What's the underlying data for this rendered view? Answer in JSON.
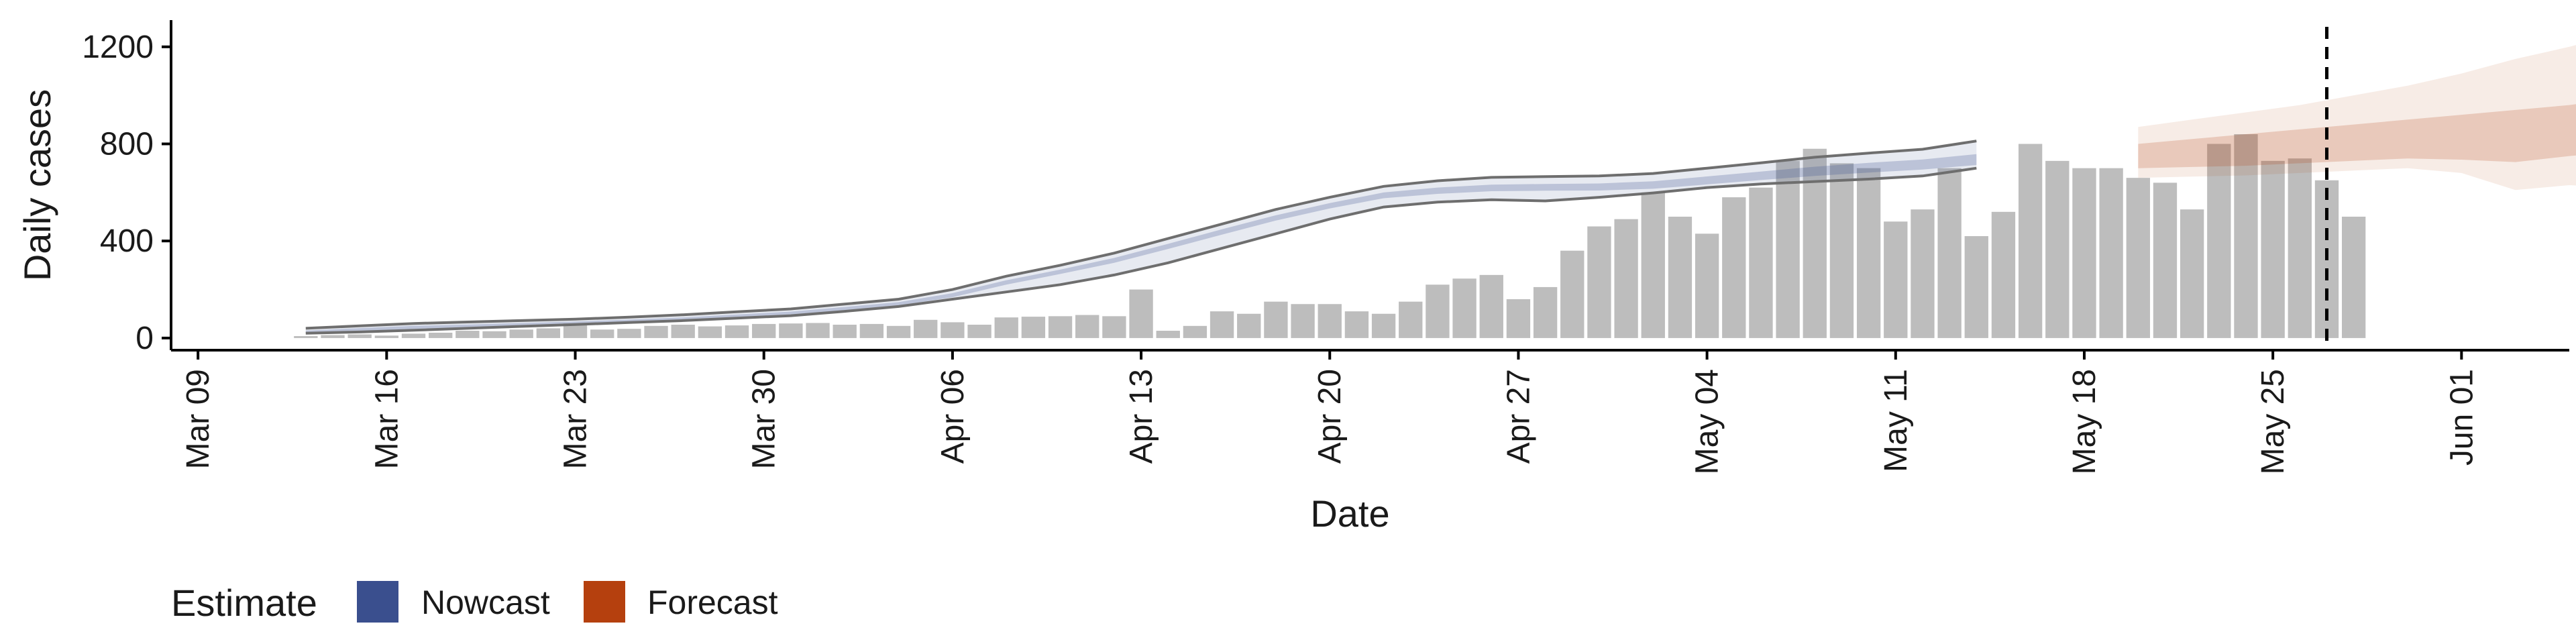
{
  "colors": {
    "bar": "#bdbdbd",
    "nowcast": "#3a4f8e",
    "forecast": "#b5400e",
    "line": "#6e6e6e",
    "axis": "#000000"
  },
  "legend": {
    "title": "Estimate",
    "items": [
      "Nowcast",
      "Forecast"
    ]
  },
  "chart_data": {
    "type": "bar",
    "xlabel": "Date",
    "ylabel": "Daily cases",
    "xlim": [
      "2020-03-08",
      "2020-06-05"
    ],
    "ylim": [
      -50,
      1310
    ],
    "yticks": [
      0,
      400,
      800,
      1200
    ],
    "xticks": [
      "2020-03-09",
      "2020-03-16",
      "2020-03-23",
      "2020-03-30",
      "2020-04-06",
      "2020-04-13",
      "2020-04-20",
      "2020-04-27",
      "2020-05-04",
      "2020-05-11",
      "2020-05-18",
      "2020-05-25",
      "2020-06-01"
    ],
    "xtick_labels": [
      "Mar 09",
      "Mar 16",
      "Mar 23",
      "Mar 30",
      "Apr 06",
      "Apr 13",
      "Apr 20",
      "Apr 27",
      "May 04",
      "May 11",
      "May 18",
      "May 25",
      "Jun 01"
    ],
    "grid": false,
    "legend_position": "bottom-left",
    "observed": {
      "name": "Daily cases",
      "start": "2020-03-13",
      "values": [
        8,
        12,
        15,
        10,
        18,
        22,
        30,
        28,
        35,
        40,
        60,
        35,
        38,
        50,
        55,
        48,
        52,
        58,
        60,
        62,
        55,
        58,
        50,
        75,
        65,
        55,
        85,
        88,
        90,
        95,
        90,
        200,
        30,
        50,
        110,
        100,
        150,
        140,
        140,
        110,
        100,
        150,
        220,
        245,
        260,
        160,
        210,
        360,
        460,
        490,
        600,
        500,
        430,
        580,
        620,
        730,
        780,
        720,
        700,
        480,
        530,
        700,
        420,
        520,
        800,
        730,
        700,
        700,
        660,
        640,
        530,
        800,
        840,
        730,
        740,
        650,
        500
      ]
    },
    "nowcast": {
      "name": "Nowcast",
      "start": "2020-03-13",
      "dates_step": 2,
      "upper": [
        40,
        50,
        60,
        66,
        72,
        78,
        86,
        96,
        108,
        120,
        140,
        160,
        200,
        255,
        300,
        350,
        410,
        470,
        530,
        580,
        625,
        648,
        662,
        665,
        668,
        678,
        700,
        722,
        745,
        762,
        778,
        812
      ],
      "inner_upper": [
        31,
        41,
        50,
        56,
        62,
        68,
        76,
        85,
        97,
        109,
        128,
        148,
        185,
        238,
        282,
        330,
        388,
        448,
        506,
        556,
        600,
        620,
        632,
        635,
        637,
        646,
        666,
        686,
        706,
        722,
        736,
        758
      ],
      "inner_lower": [
        19,
        29,
        38,
        44,
        50,
        56,
        64,
        73,
        84,
        96,
        114,
        134,
        168,
        220,
        264,
        310,
        367,
        426,
        484,
        534,
        576,
        594,
        605,
        607,
        608,
        615,
        633,
        651,
        668,
        682,
        694,
        713
      ],
      "lower": [
        20,
        25,
        32,
        40,
        48,
        56,
        64,
        72,
        82,
        92,
        110,
        130,
        160,
        190,
        220,
        260,
        310,
        370,
        430,
        490,
        540,
        560,
        570,
        565,
        580,
        598,
        620,
        635,
        645,
        655,
        668,
        700
      ]
    },
    "forecast": {
      "name": "Forecast",
      "start": "2020-05-20",
      "dates_step": 2,
      "outer_upper": [
        870,
        900,
        930,
        960,
        1000,
        1040,
        1090,
        1150,
        1200,
        1260
      ],
      "inner_upper": [
        800,
        820,
        840,
        860,
        880,
        900,
        920,
        940,
        960,
        990
      ],
      "inner_lower": [
        700,
        705,
        710,
        720,
        730,
        740,
        735,
        725,
        750,
        770
      ],
      "outer_lower": [
        660,
        665,
        670,
        680,
        690,
        700,
        680,
        610,
        630,
        620
      ]
    },
    "forecast_line_date": "2020-05-27"
  }
}
